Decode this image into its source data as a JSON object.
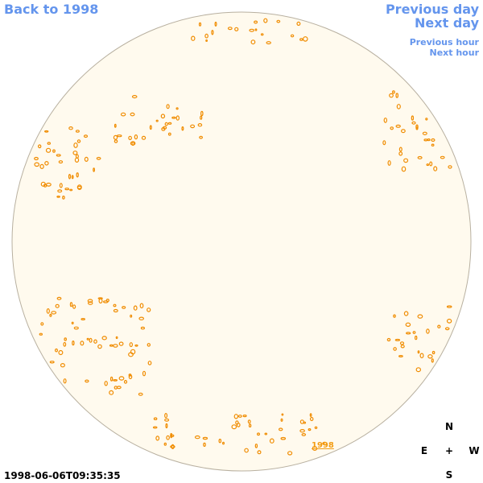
{
  "nav": {
    "back": "Back to 1998",
    "previous_day": "Previous day",
    "next_day": "Next day",
    "previous_hour": "Previous hour",
    "next_hour": "Next hour"
  },
  "disk_label": "1998",
  "timestamp": "1998-06-06T09:35:35",
  "compass": {
    "north": "N",
    "east": "E",
    "center": "+",
    "west": "W",
    "south": "S"
  }
}
